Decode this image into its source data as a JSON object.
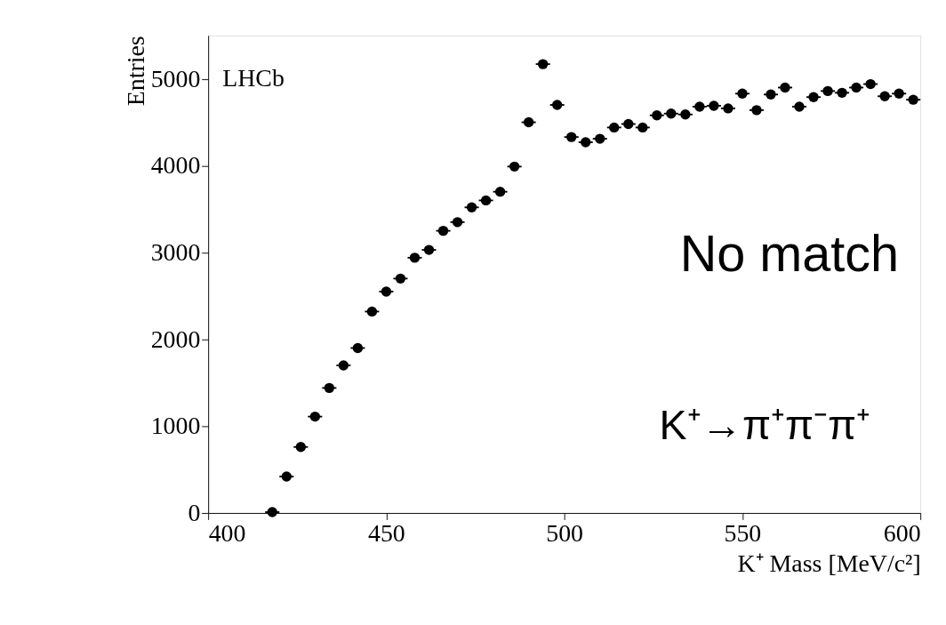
{
  "chart_data": {
    "type": "scatter",
    "xlabel": "K⁺ Mass [MeV/c²]",
    "ylabel": "Entries",
    "annotations": [
      "LHCb",
      "No match",
      "K⁺→π⁺π⁻π⁺"
    ],
    "x": [
      418,
      422,
      426,
      430,
      434,
      438,
      442,
      446,
      450,
      454,
      458,
      462,
      466,
      470,
      474,
      478,
      482,
      486,
      490,
      494,
      498,
      502,
      506,
      510,
      514,
      518,
      522,
      526,
      530,
      534,
      538,
      542,
      546,
      550,
      554,
      558,
      562,
      566,
      570,
      574,
      578,
      582,
      586,
      590,
      594,
      598
    ],
    "series": [
      {
        "color": "#000000",
        "values": [
          10,
          420,
          760,
          1110,
          1440,
          1700,
          1900,
          2320,
          2550,
          2700,
          2940,
          3030,
          3250,
          3350,
          3520,
          3600,
          3700,
          3990,
          4500,
          5170,
          4700,
          4330,
          4270,
          4310,
          4440,
          4480,
          4440,
          4580,
          4600,
          4590,
          4680,
          4690,
          4660,
          4830,
          4640,
          4820,
          4900,
          4680,
          4790,
          4860,
          4840,
          4900,
          4940,
          4800,
          4830,
          4760
        ],
        "xerrors": [
          2,
          2,
          2,
          2,
          2,
          2,
          2,
          2,
          2,
          2,
          2,
          2,
          2,
          2,
          2,
          2,
          2,
          2,
          2,
          2,
          2,
          2,
          2,
          2,
          2,
          2,
          2,
          2,
          2,
          2,
          2,
          2,
          2,
          2,
          2,
          2,
          2,
          2,
          2,
          2,
          2,
          2,
          2,
          2,
          2,
          2
        ]
      }
    ],
    "xlim": [
      400,
      600
    ],
    "xticks": [
      400,
      450,
      500,
      550,
      600
    ],
    "ylim": [
      0,
      5500
    ],
    "yticks": [
      0,
      1000,
      2000,
      3000,
      4000,
      5000
    ],
    "marker": "circle",
    "grid": false
  }
}
